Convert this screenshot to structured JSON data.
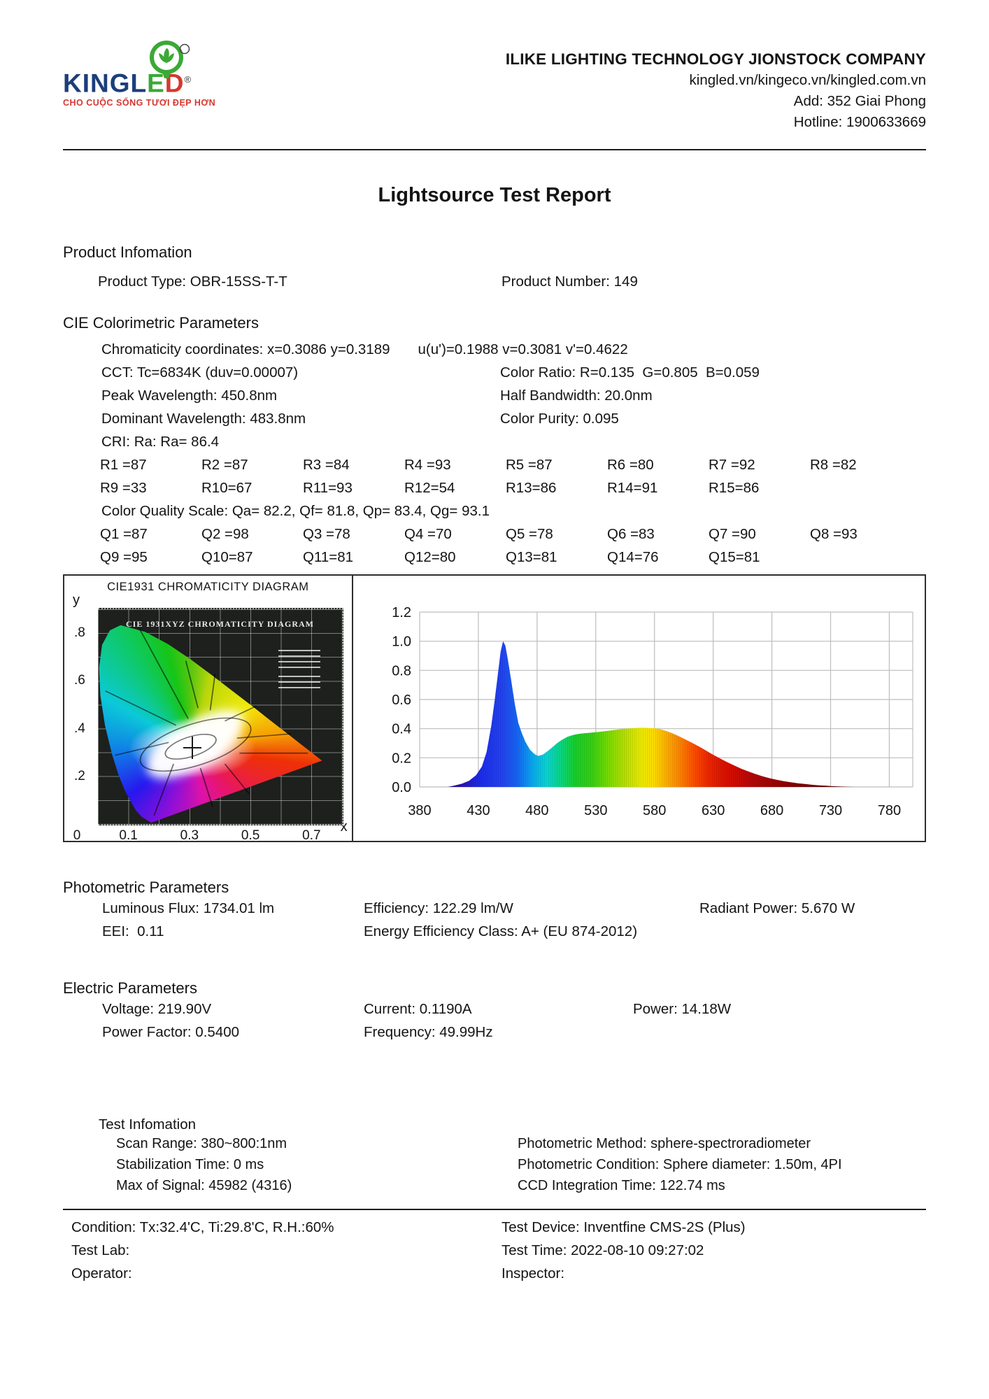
{
  "header": {
    "brand_king": "KINGL",
    "brand_e": "E",
    "brand_d": "D",
    "registered": "®",
    "tagline": "CHO CUỘC SỐNG TƯƠI ĐẸP HƠN",
    "company": "ILIKE LIGHTING TECHNOLOGY JIONSTOCK COMPANY",
    "websites": "kingled.vn/kingeco.vn/kingled.com.vn",
    "address": "Add: 352 Giai Phong",
    "hotline": "Hotline: 1900633669"
  },
  "title": "Lightsource Test Report",
  "product": {
    "heading": "Product Infomation",
    "type": "Product Type: OBR-15SS-T-T",
    "number": "Product Number: 149"
  },
  "cie": {
    "heading": "CIE Colorimetric Parameters",
    "chromaticity": "Chromaticity coordinates: x=0.3086 y=0.3189",
    "uv": "u(u')=0.1988 v=0.3081 v'=0.4622",
    "cct": "CCT: Tc=6834K (duv=0.00007)",
    "color_ratio": "Color Ratio: R=0.135  G=0.805  B=0.059",
    "peak_wavelength": "Peak Wavelength: 450.8nm",
    "half_bandwidth": "Half Bandwidth: 20.0nm",
    "dominant_wavelength": "Dominant Wavelength: 483.8nm",
    "color_purity": "Color Purity: 0.095",
    "cri": "CRI: Ra: Ra= 86.4",
    "r_values_row1": [
      "R1 =87",
      "R2 =87",
      "R3 =84",
      "R4 =93",
      "R5 =87",
      "R6 =80",
      "R7 =92",
      "R8 =82"
    ],
    "r_values_row2": [
      "R9 =33",
      "R10=67",
      "R11=93",
      "R12=54",
      "R13=86",
      "R14=91",
      "R15=86"
    ],
    "cqs": "Color Quality Scale: Qa= 82.2, Qf= 81.8, Qp= 83.4, Qg= 93.1",
    "q_values_row1": [
      "Q1 =87",
      "Q2 =98",
      "Q3 =78",
      "Q4 =70",
      "Q5 =78",
      "Q6 =83",
      "Q7 =90",
      "Q8 =93"
    ],
    "q_values_row2": [
      "Q9 =95",
      "Q10=87",
      "Q11=81",
      "Q12=80",
      "Q13=81",
      "Q14=76",
      "Q15=81"
    ]
  },
  "chart_data": [
    {
      "type": "scatter",
      "title": "CIE1931 CHROMATICITY DIAGRAM",
      "inner_title": "CIE 1931XYZ CHROMATICITY DIAGRAM",
      "xlabel": "x",
      "ylabel": "y",
      "xlim": [
        0,
        0.8
      ],
      "ylim": [
        0,
        0.9
      ],
      "x_ticks": [
        0,
        0.1,
        0.3,
        0.5,
        0.7
      ],
      "y_ticks": [
        0.2,
        0.4,
        0.6,
        0.8
      ],
      "points": [
        {
          "name": "measured white point",
          "x": 0.3086,
          "y": 0.3189
        }
      ],
      "notes": "CIE 1931 xy horseshoe chromaticity diagram with cross marker at measured chromaticity"
    },
    {
      "type": "area",
      "xlim": [
        380,
        800
      ],
      "ylim": [
        0,
        1.2
      ],
      "x_ticks": [
        380,
        430,
        480,
        530,
        580,
        630,
        680,
        730,
        780
      ],
      "y_ticks": [
        0.0,
        0.2,
        0.4,
        0.6,
        0.8,
        1.0,
        1.2
      ],
      "grid": true,
      "series": [
        {
          "name": "relative spectral power",
          "points": [
            [
              404,
              0
            ],
            [
              410,
              0.01
            ],
            [
              416,
              0.022
            ],
            [
              422,
              0.042
            ],
            [
              428,
              0.08
            ],
            [
              433,
              0.14
            ],
            [
              437,
              0.24
            ],
            [
              441,
              0.42
            ],
            [
              444,
              0.6
            ],
            [
              447,
              0.8
            ],
            [
              449,
              0.93
            ],
            [
              451,
              1.0
            ],
            [
              453,
              0.97
            ],
            [
              455,
              0.88
            ],
            [
              458,
              0.73
            ],
            [
              461,
              0.57
            ],
            [
              464,
              0.44
            ],
            [
              467,
              0.37
            ],
            [
              470,
              0.31
            ],
            [
              474,
              0.255
            ],
            [
              478,
              0.224
            ],
            [
              481,
              0.213
            ],
            [
              485,
              0.222
            ],
            [
              489,
              0.246
            ],
            [
              493,
              0.272
            ],
            [
              497,
              0.3
            ],
            [
              501,
              0.322
            ],
            [
              506,
              0.344
            ],
            [
              511,
              0.357
            ],
            [
              516,
              0.365
            ],
            [
              521,
              0.369
            ],
            [
              527,
              0.373
            ],
            [
              533,
              0.378
            ],
            [
              539,
              0.384
            ],
            [
              545,
              0.39
            ],
            [
              551,
              0.396
            ],
            [
              557,
              0.401
            ],
            [
              563,
              0.404
            ],
            [
              569,
              0.406
            ],
            [
              575,
              0.405
            ],
            [
              580,
              0.402
            ],
            [
              585,
              0.396
            ],
            [
              590,
              0.384
            ],
            [
              595,
              0.369
            ],
            [
              600,
              0.351
            ],
            [
              606,
              0.327
            ],
            [
              612,
              0.303
            ],
            [
              618,
              0.277
            ],
            [
              624,
              0.249
            ],
            [
              630,
              0.221
            ],
            [
              636,
              0.195
            ],
            [
              642,
              0.17
            ],
            [
              648,
              0.147
            ],
            [
              654,
              0.125
            ],
            [
              660,
              0.106
            ],
            [
              666,
              0.089
            ],
            [
              672,
              0.073
            ],
            [
              678,
              0.06
            ],
            [
              684,
              0.049
            ],
            [
              690,
              0.04
            ],
            [
              696,
              0.032
            ],
            [
              702,
              0.025
            ],
            [
              708,
              0.02
            ],
            [
              714,
              0.015
            ],
            [
              720,
              0.011
            ],
            [
              726,
              0.008
            ],
            [
              732,
              0.005
            ],
            [
              738,
              0.003
            ],
            [
              744,
              0.001
            ],
            [
              750,
              0
            ]
          ]
        }
      ]
    }
  ],
  "photometric": {
    "heading": "Photometric Parameters",
    "luminous_flux": "Luminous Flux: 1734.01 lm",
    "efficiency": "Efficiency: 122.29 lm/W",
    "radiant_power": "Radiant Power: 5.670 W",
    "eei": "EEI:  0.11",
    "energy_class": "Energy Efficiency Class: A+ (EU 874-2012)"
  },
  "electric": {
    "heading": "Electric Parameters",
    "voltage": "Voltage: 219.90V",
    "current": "Current: 0.1190A",
    "power": "Power: 14.18W",
    "power_factor": "Power Factor: 0.5400",
    "frequency": "Frequency: 49.99Hz"
  },
  "test_info": {
    "heading": "Test Infomation",
    "scan_range": "Scan Range: 380~800:1nm",
    "stabilization_time": "Stabilization Time: 0 ms",
    "max_signal": "Max of Signal: 45982 (4316)",
    "photometric_method": "Photometric Method: sphere-spectroradiometer",
    "photometric_condition": "Photometric Condition: Sphere diameter: 1.50m, 4PI",
    "ccd_integration": "CCD Integration Time: 122.74 ms"
  },
  "footer": {
    "condition": "Condition: Tx:32.4'C, Ti:29.8'C, R.H.:60%",
    "test_lab": "Test Lab:",
    "operator": "Operator:",
    "test_device": "Test Device: Inventfine CMS-2S (Plus)",
    "test_time": "Test Time: 2022-08-10 09:27:02",
    "inspector": "Inspector:"
  },
  "colors": {
    "brand_navy": "#1c3e7a",
    "brand_green": "#3aa935",
    "brand_red": "#d5372f",
    "rule": "#1d1d1d"
  }
}
